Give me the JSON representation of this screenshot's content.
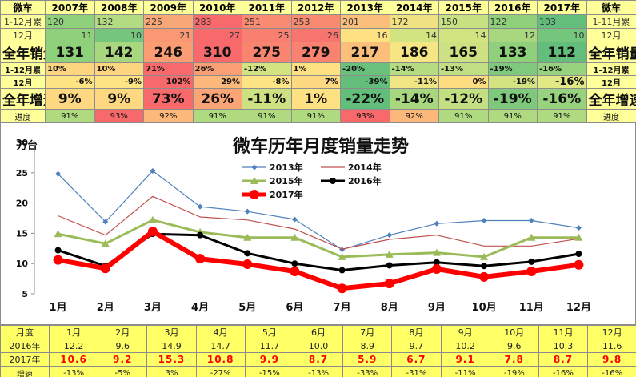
{
  "top_table": {
    "corner_label": "微车",
    "right_label": "微车",
    "years": [
      "2007年",
      "2008年",
      "2009年",
      "2010年",
      "2011年",
      "2012年",
      "2013年",
      "2014年",
      "2015年",
      "2016年",
      "2017年"
    ],
    "rows": [
      {
        "label": "1-12月累",
        "right": "1-11月累",
        "kind": "cum",
        "values": [
          "120",
          "132",
          "225",
          "283",
          "251",
          "253",
          "201",
          "172",
          "150",
          "122",
          "103"
        ],
        "colors": [
          "#8fd17a",
          "#b3dc82",
          "#f8a877",
          "#f8696b",
          "#f98b72",
          "#f98a72",
          "#fcbf7b",
          "#f0e283",
          "#c8e182",
          "#8fd17a",
          "#63be7b"
        ]
      },
      {
        "label": "12月",
        "right": "12月",
        "kind": "mon",
        "values": [
          "11",
          "10",
          "21",
          "27",
          "25",
          "26",
          "16",
          "14",
          "14",
          "12",
          "10"
        ],
        "colors": [
          "#8fd17a",
          "#74c67c",
          "#fa9873",
          "#f8696b",
          "#f98070",
          "#f8746e",
          "#fee282",
          "#d2e481",
          "#d2e481",
          "#a8d780",
          "#74c67c"
        ]
      },
      {
        "label": "全年销量",
        "right": "全年销量",
        "kind": "tot",
        "values": [
          "131",
          "142",
          "246",
          "310",
          "275",
          "279",
          "217",
          "186",
          "165",
          "133",
          "112"
        ],
        "colors": [
          "#8fd17a",
          "#a8d780",
          "#fa9c74",
          "#f8696b",
          "#f98570",
          "#f98270",
          "#fcbf7b",
          "#f5e683",
          "#cde182",
          "#8fd17a",
          "#63be7b"
        ]
      },
      {
        "label": "1-12月累",
        "right": "1-12月累",
        "kind": "cgr",
        "values": [
          "10%",
          "10%",
          "71%",
          "26%",
          "-12%",
          "1%",
          "-20%",
          "-14%",
          "-13%",
          "-19%",
          "-16%"
        ],
        "colors": [
          "#fdd47f",
          "#fdd47f",
          "#f8696b",
          "#fa9f75",
          "#d3e382",
          "#fee182",
          "#6ac17b",
          "#b6dc81",
          "#bfdf82",
          "#7fc97c",
          "#97d27e"
        ]
      },
      {
        "label": "12月",
        "right": "12月",
        "kind": "mgr",
        "values": [
          "-6%",
          "-9%",
          "102%",
          "29%",
          "-8%",
          "7%",
          "-39%",
          "-11%",
          "0%",
          "-19%",
          "-16%"
        ],
        "colors": [
          "#fee483",
          "#fee483",
          "#f8696b",
          "#fcb77a",
          "#fee483",
          "#fed981",
          "#63be7b",
          "#f0e583",
          "#fedd81",
          "#d3e382",
          "#e2e883"
        ]
      },
      {
        "label": "全年增速",
        "right": "全年增速",
        "kind": "ygr",
        "values": [
          "9%",
          "9%",
          "73%",
          "26%",
          "-11%",
          "1%",
          "-22%",
          "-14%",
          "-12%",
          "-19%",
          "-16%"
        ],
        "colors": [
          "#fed880",
          "#fed880",
          "#f8696b",
          "#fba576",
          "#cde182",
          "#fee182",
          "#63be7b",
          "#a8d780",
          "#c2e082",
          "#7fc97c",
          "#97d27e"
        ]
      },
      {
        "label": "进度",
        "right": "进度",
        "kind": "prg",
        "values": [
          "91%",
          "93%",
          "92%",
          "91%",
          "91%",
          "91%",
          "93%",
          "92%",
          "91%",
          "91%",
          "91%"
        ],
        "colors": [
          "#b0da80",
          "#f8696b",
          "#fcb77a",
          "#b0da80",
          "#b0da80",
          "#b0da80",
          "#f8696b",
          "#fcb77a",
          "#b0da80",
          "#b0da80",
          "#b0da80"
        ]
      }
    ]
  },
  "chart_data": {
    "type": "line",
    "title": "微车历年月度销量走势",
    "ylabel": "万台",
    "ylim": [
      5,
      30
    ],
    "yticks": [
      "5",
      "10",
      "15",
      "20",
      "25",
      "30"
    ],
    "grid": false,
    "legend_position": "top-center",
    "categories": [
      "1月",
      "2月",
      "3月",
      "4月",
      "5月",
      "6月",
      "7月",
      "8月",
      "9月",
      "10月",
      "11月",
      "12月"
    ],
    "series": [
      {
        "name": "2013年",
        "color": "#4f81bd",
        "marker": "diamond",
        "width": 1.2,
        "values": [
          24.8,
          16.9,
          25.3,
          19.4,
          18.6,
          17.3,
          12.3,
          14.7,
          16.6,
          17.1,
          17.1,
          15.9
        ]
      },
      {
        "name": "2014年",
        "color": "#c0504d",
        "marker": "none",
        "width": 1.2,
        "values": [
          17.9,
          14.7,
          21.1,
          17.7,
          17.2,
          15.7,
          12.4,
          14.0,
          14.7,
          12.9,
          12.9,
          14.1
        ]
      },
      {
        "name": "2015年",
        "color": "#9bbb59",
        "marker": "triangle",
        "width": 3,
        "values": [
          14.9,
          13.3,
          17.2,
          15.2,
          14.3,
          14.3,
          11.1,
          11.5,
          11.8,
          11.1,
          14.3,
          14.3
        ]
      },
      {
        "name": "2016年",
        "color": "#000000",
        "marker": "circle",
        "width": 3,
        "values": [
          12.2,
          9.6,
          14.9,
          14.7,
          11.7,
          10.0,
          8.9,
          9.7,
          10.2,
          9.6,
          10.3,
          11.6
        ]
      },
      {
        "name": "2017年",
        "color": "#ff0000",
        "marker": "circle-big",
        "width": 6,
        "values": [
          10.6,
          9.2,
          15.3,
          10.8,
          9.9,
          8.7,
          5.9,
          6.7,
          9.1,
          7.8,
          8.7,
          9.8
        ]
      }
    ]
  },
  "bottom_table": {
    "header_label": "月度",
    "months": [
      "1月",
      "2月",
      "3月",
      "4月",
      "5月",
      "6月",
      "7月",
      "8月",
      "9月",
      "10月",
      "11月",
      "12月"
    ],
    "rows": [
      {
        "label": "2016年",
        "kind": "r16",
        "values": [
          "12.2",
          "9.6",
          "14.9",
          "14.7",
          "11.7",
          "10.0",
          "8.9",
          "9.7",
          "10.2",
          "9.6",
          "10.3",
          "11.6"
        ]
      },
      {
        "label": "2017年",
        "kind": "r17",
        "values": [
          "10.6",
          "9.2",
          "15.3",
          "10.8",
          "9.9",
          "8.7",
          "5.9",
          "6.7",
          "9.1",
          "7.8",
          "8.7",
          "9.8"
        ]
      },
      {
        "label": "增速",
        "kind": "rg",
        "values": [
          "-13%",
          "-5%",
          "3%",
          "-27%",
          "-15%",
          "-13%",
          "-33%",
          "-31%",
          "-11%",
          "-19%",
          "-16%",
          "-16%"
        ]
      }
    ]
  }
}
